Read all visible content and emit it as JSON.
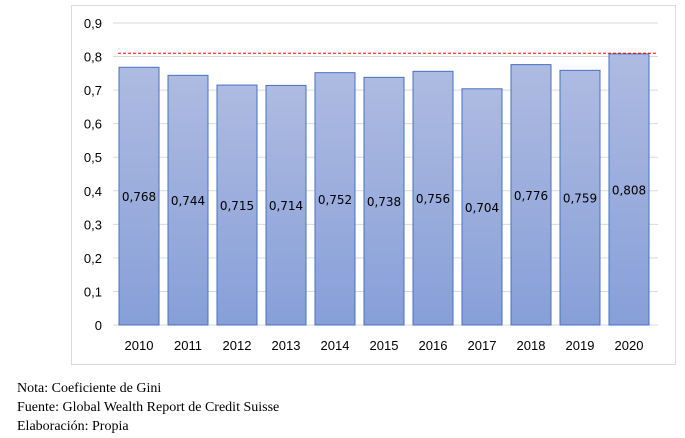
{
  "chart_data": {
    "type": "bar",
    "title": "",
    "xlabel": "",
    "ylabel": "",
    "categories": [
      "2010",
      "2011",
      "2012",
      "2013",
      "2014",
      "2015",
      "2016",
      "2017",
      "2018",
      "2019",
      "2020"
    ],
    "values": [
      0.768,
      0.744,
      0.715,
      0.714,
      0.752,
      0.738,
      0.756,
      0.704,
      0.776,
      0.759,
      0.808
    ],
    "data_labels": [
      "0,768",
      "0,744",
      "0,715",
      "0,714",
      "0,752",
      "0,738",
      "0,756",
      "0,704",
      "0,776",
      "0,759",
      "0,808"
    ],
    "ylim": [
      0,
      0.9
    ],
    "yticks": [
      0,
      0.1,
      0.2,
      0.3,
      0.4,
      0.5,
      0.6,
      0.7,
      0.8,
      0.9
    ],
    "ytick_labels": [
      "0",
      "0,1",
      "0,2",
      "0,3",
      "0,4",
      "0,5",
      "0,6",
      "0,7",
      "0,8",
      "0,9"
    ],
    "reference_line": {
      "value": 0.81,
      "style": "dashed",
      "color": "#ff0000"
    },
    "grid": true,
    "legend": "none",
    "colors": {
      "bar_top": "#aebbe1",
      "bar_bottom": "#879fd8",
      "bar_border": "#4472c4",
      "grid": "#d9d9d9"
    }
  },
  "notes": {
    "nota": "Nota: Coeficiente de Gini",
    "fuente": "Fuente: Global Wealth Report de Credit Suisse",
    "elaboracion": "Elaboración: Propia"
  }
}
